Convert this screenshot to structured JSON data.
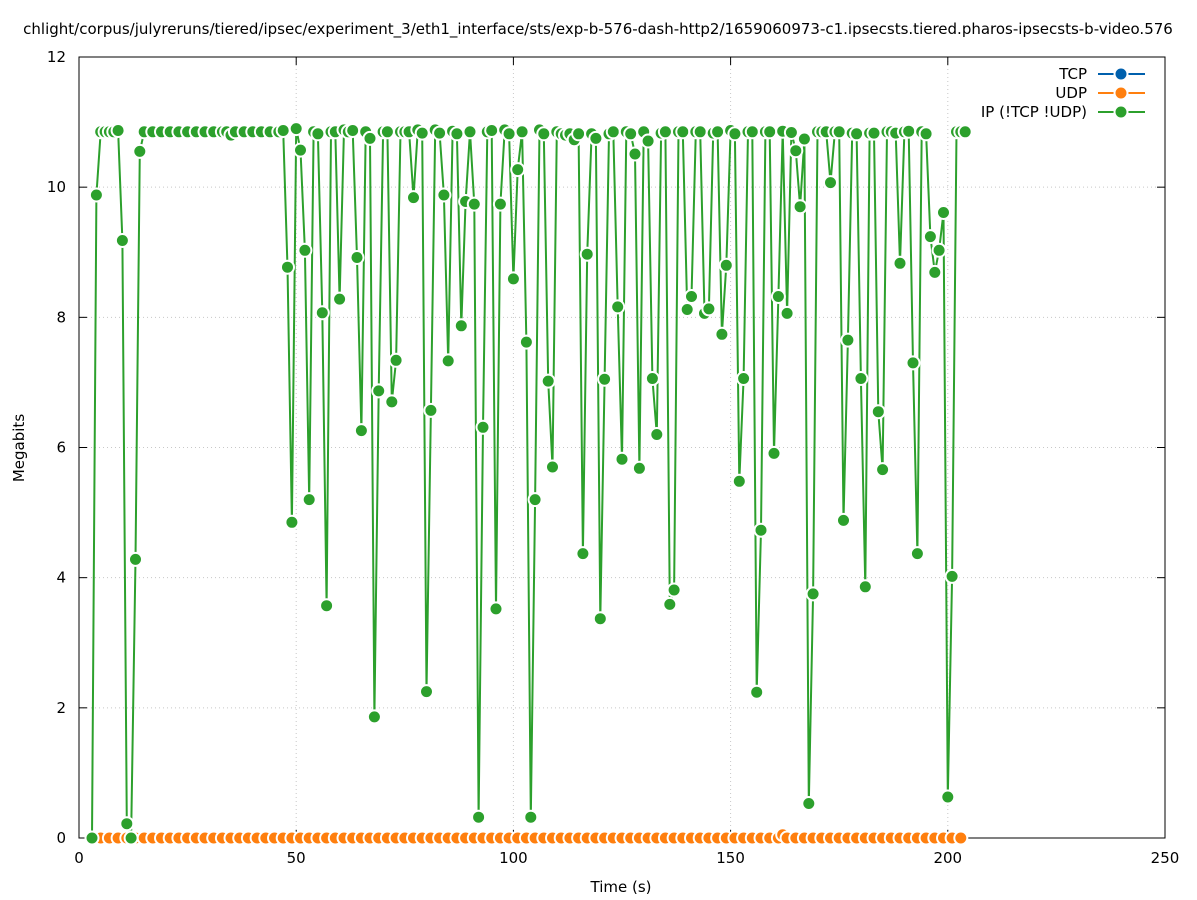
{
  "chart_data": {
    "type": "line",
    "title": "chlight/corpus/julyreruns/tiered/ipsec/experiment_3/eth1_interface/sts/exp-b-576-dash-http2/1659060973-c1.ipsecsts.tiered.pharos-ipsecsts-b-video.576",
    "xlabel": "Time (s)",
    "ylabel": "Megabits",
    "xlim": [
      0,
      250
    ],
    "ylim": [
      0,
      12
    ],
    "x_ticks": [
      "0",
      "50",
      "100",
      "150",
      "200",
      "250"
    ],
    "y_ticks": [
      "0",
      "2",
      "4",
      "6",
      "8",
      "10",
      "12"
    ],
    "grid": true,
    "legend_position": "top-right",
    "series": [
      {
        "name": "TCP",
        "color": "#0060ad",
        "x": [],
        "y": []
      },
      {
        "name": "UDP",
        "color": "#ff7f0e",
        "x": [
          3,
          5,
          7,
          9,
          11,
          13,
          15,
          17,
          19,
          21,
          23,
          25,
          27,
          29,
          31,
          33,
          35,
          37,
          39,
          41,
          43,
          45,
          47,
          49,
          51,
          53,
          55,
          57,
          59,
          61,
          63,
          65,
          67,
          69,
          71,
          73,
          75,
          77,
          79,
          81,
          83,
          85,
          87,
          89,
          91,
          93,
          95,
          97,
          99,
          101,
          103,
          105,
          107,
          109,
          111,
          113,
          115,
          117,
          119,
          121,
          123,
          125,
          127,
          129,
          131,
          133,
          135,
          137,
          139,
          141,
          143,
          145,
          147,
          149,
          151,
          153,
          155,
          157,
          159,
          161,
          162,
          163,
          165,
          167,
          169,
          171,
          173,
          175,
          177,
          179,
          181,
          183,
          185,
          187,
          189,
          191,
          193,
          195,
          197,
          199,
          201,
          203
        ],
        "y": [
          0,
          0,
          0,
          0,
          0,
          0,
          0,
          0,
          0,
          0,
          0,
          0,
          0,
          0,
          0,
          0,
          0,
          0,
          0,
          0,
          0,
          0,
          0,
          0,
          0,
          0,
          0,
          0,
          0,
          0,
          0,
          0,
          0,
          0,
          0,
          0,
          0,
          0,
          0,
          0,
          0,
          0,
          0,
          0,
          0,
          0,
          0,
          0,
          0,
          0,
          0,
          0,
          0,
          0,
          0,
          0,
          0,
          0,
          0,
          0,
          0,
          0,
          0,
          0,
          0,
          0,
          0,
          0,
          0,
          0,
          0,
          0,
          0,
          0,
          0,
          0,
          0,
          0,
          0,
          0,
          0.05,
          0,
          0,
          0,
          0,
          0,
          0,
          0,
          0,
          0,
          0,
          0,
          0,
          0,
          0,
          0,
          0,
          0,
          0,
          0,
          0,
          0
        ]
      },
      {
        "name": "IP (!TCP  !UDP)",
        "color": "#2ca02c",
        "x": [
          3,
          4,
          5,
          6,
          7,
          8,
          9,
          10,
          11,
          12,
          13,
          14,
          15,
          17,
          19,
          21,
          23,
          25,
          27,
          29,
          31,
          33,
          34,
          35,
          36,
          38,
          40,
          42,
          44,
          46,
          47,
          48,
          49,
          50,
          51,
          52,
          53,
          54,
          55,
          56,
          57,
          58,
          59,
          60,
          61,
          62,
          63,
          64,
          65,
          66,
          67,
          68,
          69,
          70,
          71,
          72,
          73,
          74,
          75,
          76,
          77,
          78,
          79,
          80,
          81,
          82,
          83,
          84,
          85,
          86,
          87,
          88,
          89,
          90,
          91,
          92,
          93,
          94,
          95,
          96,
          97,
          98,
          99,
          100,
          101,
          102,
          103,
          104,
          105,
          106,
          107,
          108,
          109,
          110,
          111,
          112,
          113,
          114,
          115,
          116,
          117,
          118,
          119,
          120,
          121,
          122,
          123,
          124,
          125,
          126,
          127,
          128,
          129,
          130,
          131,
          132,
          133,
          134,
          135,
          136,
          137,
          138,
          139,
          140,
          141,
          142,
          143,
          144,
          145,
          146,
          147,
          148,
          149,
          150,
          151,
          152,
          153,
          154,
          155,
          156,
          157,
          158,
          159,
          160,
          161,
          162,
          163,
          164,
          165,
          166,
          167,
          168,
          169,
          170,
          171,
          172,
          173,
          174,
          175,
          176,
          177,
          178,
          179,
          180,
          181,
          182,
          183,
          184,
          185,
          186,
          187,
          188,
          189,
          190,
          191,
          192,
          193,
          194,
          195,
          196,
          197,
          198,
          199,
          200,
          201,
          202,
          203,
          204
        ],
        "y": [
          0,
          9.88,
          10.85,
          10.85,
          10.85,
          10.85,
          10.87,
          9.18,
          0.22,
          0.0,
          4.28,
          10.55,
          10.85,
          10.85,
          10.85,
          10.85,
          10.85,
          10.85,
          10.85,
          10.85,
          10.85,
          10.85,
          10.85,
          10.8,
          10.85,
          10.85,
          10.85,
          10.85,
          10.85,
          10.85,
          10.87,
          8.77,
          4.85,
          10.9,
          10.57,
          9.03,
          5.2,
          10.85,
          10.82,
          8.07,
          3.57,
          10.85,
          10.85,
          8.28,
          10.88,
          10.85,
          10.87,
          8.92,
          6.26,
          10.85,
          10.75,
          1.86,
          6.87,
          10.85,
          10.85,
          6.7,
          7.34,
          10.85,
          10.85,
          10.85,
          9.84,
          10.88,
          10.83,
          2.25,
          6.57,
          10.88,
          10.83,
          9.88,
          7.33,
          10.86,
          10.82,
          7.87,
          9.78,
          10.85,
          9.74,
          0.32,
          6.31,
          10.85,
          10.87,
          3.52,
          9.74,
          10.88,
          10.82,
          8.59,
          10.27,
          10.85,
          7.62,
          0.32,
          5.2,
          10.88,
          10.82,
          7.02,
          5.7,
          10.85,
          10.82,
          10.8,
          10.82,
          10.73,
          10.82,
          4.37,
          8.97,
          10.82,
          10.75,
          3.37,
          7.05,
          10.82,
          10.85,
          8.16,
          5.82,
          10.85,
          10.82,
          10.51,
          5.68,
          10.85,
          10.71,
          7.06,
          6.2,
          10.83,
          10.85,
          3.59,
          3.81,
          10.85,
          10.85,
          8.12,
          8.32,
          10.85,
          10.85,
          8.06,
          8.13,
          10.83,
          10.85,
          7.74,
          8.8,
          10.87,
          10.82,
          5.48,
          7.06,
          10.85,
          10.85,
          2.24,
          4.73,
          10.85,
          10.85,
          5.91,
          8.32,
          10.86,
          8.06,
          10.84,
          10.56,
          9.7,
          10.74,
          0.53,
          3.75,
          10.85,
          10.85,
          10.85,
          10.07,
          10.85,
          10.85,
          4.88,
          7.65,
          10.83,
          10.82,
          7.06,
          3.86,
          10.83,
          10.83,
          6.55,
          5.66,
          10.85,
          10.85,
          10.83,
          8.83,
          10.85,
          10.86,
          7.3,
          4.37,
          10.85,
          10.82,
          9.24,
          8.69,
          9.03,
          9.61,
          0.63,
          4.02,
          10.85,
          10.85,
          10.85
        ]
      }
    ]
  }
}
